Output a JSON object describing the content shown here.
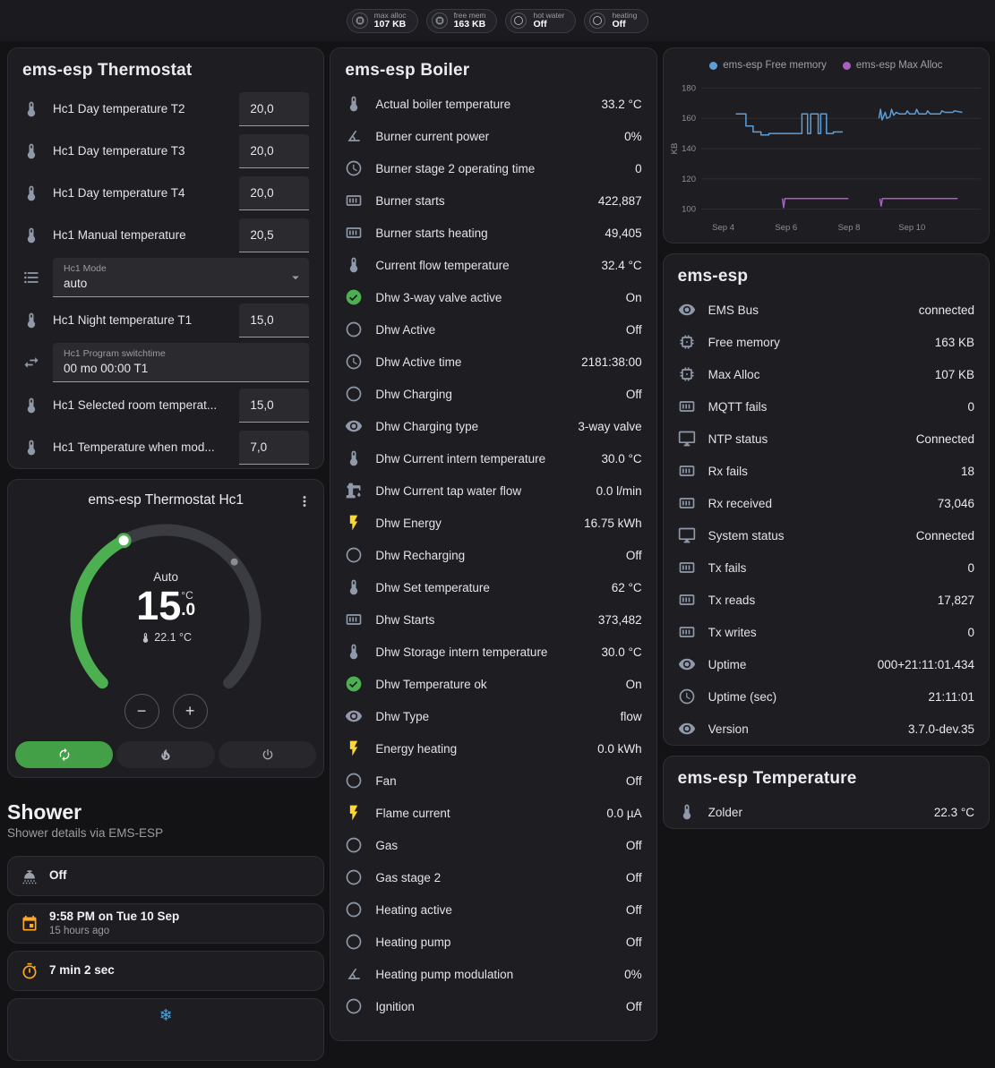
{
  "colors": {
    "green": "#4caf50",
    "amber": "#ffa726",
    "yellow": "#fdd835",
    "blue": "#4aa3df",
    "icon_default": "#8f99a9"
  },
  "topbar": {
    "chips": [
      {
        "icon": "memory",
        "label": "max alloc",
        "value": "107 KB"
      },
      {
        "icon": "memory",
        "label": "free mem",
        "value": "163 KB"
      },
      {
        "icon": "circle-outline",
        "label": "hot water",
        "value": "Off"
      },
      {
        "icon": "circle-outline",
        "label": "heating",
        "value": "Off"
      }
    ]
  },
  "thermostat_card": {
    "title": "ems-esp Thermostat",
    "rows": [
      {
        "icon": "thermometer",
        "label": "Hc1 Day temperature T2",
        "control": {
          "kind": "number",
          "value": "20,0"
        }
      },
      {
        "icon": "thermometer",
        "label": "Hc1 Day temperature T3",
        "control": {
          "kind": "number",
          "value": "20,0"
        }
      },
      {
        "icon": "thermometer",
        "label": "Hc1 Day temperature T4",
        "control": {
          "kind": "number",
          "value": "20,0"
        }
      },
      {
        "icon": "thermometer",
        "label": "Hc1 Manual temperature",
        "control": {
          "kind": "number",
          "value": "20,5"
        }
      },
      {
        "icon": "list",
        "label": "",
        "control": {
          "kind": "select",
          "label": "Hc1 Mode",
          "value": "auto"
        }
      },
      {
        "icon": "thermometer",
        "label": "Hc1 Night temperature T1",
        "control": {
          "kind": "number",
          "value": "15,0"
        }
      },
      {
        "icon": "swap",
        "label": "",
        "control": {
          "kind": "text",
          "label": "Hc1 Program switchtime",
          "value": "00 mo 00:00 T1"
        }
      },
      {
        "icon": "thermometer",
        "label": "Hc1 Selected room temperat...",
        "control": {
          "kind": "number",
          "value": "15,0"
        }
      },
      {
        "icon": "thermometer",
        "label": "Hc1 Temperature when mod...",
        "control": {
          "kind": "number",
          "value": "7,0"
        }
      }
    ]
  },
  "dial_card": {
    "title": "ems-esp Thermostat Hc1",
    "mode_label": "Auto",
    "target_int": "15",
    "target_dec": ".0",
    "unit": "°C",
    "current": "22.1 °C",
    "minus": "−",
    "plus": "+",
    "modes": [
      {
        "icon": "autorenew",
        "name": "auto",
        "active": true
      },
      {
        "icon": "fire",
        "name": "heat",
        "active": false
      },
      {
        "icon": "power",
        "name": "off",
        "active": false
      }
    ]
  },
  "shower": {
    "heading": "Shower",
    "subtitle": "Shower details via EMS-ESP",
    "tiles": [
      {
        "icon": "shower-head",
        "icon_color": "#9ba1ab",
        "title": "Off",
        "subtitle": ""
      },
      {
        "icon": "calendar",
        "icon_color": "#ffa726",
        "title": "9:58 PM on Tue 10 Sep",
        "subtitle": "15 hours ago"
      },
      {
        "icon": "timer",
        "icon_color": "#ffa726",
        "title": "7 min 2 sec",
        "subtitle": ""
      },
      {
        "icon": "snowflake",
        "glyph": "❄",
        "icon_color": "#4aa3df",
        "title": "",
        "subtitle": ""
      }
    ]
  },
  "boiler_card": {
    "title": "ems-esp Boiler",
    "rows": [
      {
        "icon": "thermometer",
        "label": "Actual boiler temperature",
        "value": "33.2 °C"
      },
      {
        "icon": "angle",
        "label": "Burner current power",
        "value": "0%"
      },
      {
        "icon": "clock",
        "label": "Burner stage 2 operating time",
        "value": "0"
      },
      {
        "icon": "counter",
        "label": "Burner starts",
        "value": "422,887"
      },
      {
        "icon": "counter",
        "label": "Burner starts heating",
        "value": "49,405"
      },
      {
        "icon": "thermometer",
        "label": "Current flow temperature",
        "value": "32.4 °C"
      },
      {
        "icon": "check-circle",
        "icon_color": "#4caf50",
        "label": "Dhw 3-way valve active",
        "value": "On"
      },
      {
        "icon": "circle-outline",
        "label": "Dhw Active",
        "value": "Off"
      },
      {
        "icon": "clock",
        "label": "Dhw Active time",
        "value": "2181:38:00"
      },
      {
        "icon": "circle-outline",
        "label": "Dhw Charging",
        "value": "Off"
      },
      {
        "icon": "eye",
        "label": "Dhw Charging type",
        "value": "3-way valve"
      },
      {
        "icon": "thermometer",
        "label": "Dhw Current intern temperature",
        "value": "30.0 °C"
      },
      {
        "icon": "water-pump",
        "label": "Dhw Current tap water flow",
        "value": "0.0 l/min"
      },
      {
        "icon": "flash",
        "icon_color": "#fdd835",
        "label": "Dhw Energy",
        "value": "16.75 kWh"
      },
      {
        "icon": "circle-outline",
        "label": "Dhw Recharging",
        "value": "Off"
      },
      {
        "icon": "thermometer",
        "label": "Dhw Set temperature",
        "value": "62 °C"
      },
      {
        "icon": "counter",
        "label": "Dhw Starts",
        "value": "373,482"
      },
      {
        "icon": "thermometer",
        "label": "Dhw Storage intern temperature",
        "value": "30.0 °C"
      },
      {
        "icon": "check-circle",
        "icon_color": "#4caf50",
        "label": "Dhw Temperature ok",
        "value": "On"
      },
      {
        "icon": "eye",
        "label": "Dhw Type",
        "value": "flow"
      },
      {
        "icon": "flash",
        "icon_color": "#fdd835",
        "label": "Energy heating",
        "value": "0.0 kWh"
      },
      {
        "icon": "circle-outline",
        "label": "Fan",
        "value": "Off"
      },
      {
        "icon": "flash",
        "icon_color": "#fdd835",
        "label": "Flame current",
        "value": "0.0 µA"
      },
      {
        "icon": "circle-outline",
        "label": "Gas",
        "value": "Off"
      },
      {
        "icon": "circle-outline",
        "label": "Gas stage 2",
        "value": "Off"
      },
      {
        "icon": "circle-outline",
        "label": "Heating active",
        "value": "Off"
      },
      {
        "icon": "circle-outline",
        "label": "Heating pump",
        "value": "Off"
      },
      {
        "icon": "angle",
        "label": "Heating pump modulation",
        "value": "0%"
      },
      {
        "icon": "circle-outline",
        "label": "Ignition",
        "value": "Off"
      }
    ]
  },
  "esp_card": {
    "title": "ems-esp",
    "rows": [
      {
        "icon": "eye",
        "label": "EMS Bus",
        "value": "connected"
      },
      {
        "icon": "memory",
        "label": "Free memory",
        "value": "163 KB"
      },
      {
        "icon": "memory",
        "label": "Max Alloc",
        "value": "107 KB"
      },
      {
        "icon": "counter",
        "label": "MQTT fails",
        "value": "0"
      },
      {
        "icon": "monitor",
        "label": "NTP status",
        "value": "Connected"
      },
      {
        "icon": "counter",
        "label": "Rx fails",
        "value": "18"
      },
      {
        "icon": "counter",
        "label": "Rx received",
        "value": "73,046"
      },
      {
        "icon": "monitor",
        "label": "System status",
        "value": "Connected"
      },
      {
        "icon": "counter",
        "label": "Tx fails",
        "value": "0"
      },
      {
        "icon": "counter",
        "label": "Tx reads",
        "value": "17,827"
      },
      {
        "icon": "counter",
        "label": "Tx writes",
        "value": "0"
      },
      {
        "icon": "eye",
        "label": "Uptime",
        "value": "000+21:11:01.434"
      },
      {
        "icon": "clock",
        "label": "Uptime (sec)",
        "value": "21:11:01"
      },
      {
        "icon": "eye",
        "label": "Version",
        "value": "3.7.0-dev.35"
      }
    ]
  },
  "temperature_card": {
    "title": "ems-esp Temperature",
    "rows": [
      {
        "icon": "thermometer",
        "label": "Zolder",
        "value": "22.3 °C"
      }
    ]
  },
  "chart_data": {
    "type": "line",
    "title": "",
    "ylabel": "KB",
    "ylim": [
      95,
      185
    ],
    "yticks": [
      100,
      120,
      140,
      160,
      180
    ],
    "xlim": [
      3.3,
      11.9
    ],
    "xticks": [
      {
        "v": 4,
        "label": "Sep 4"
      },
      {
        "v": 6,
        "label": "Sep 6"
      },
      {
        "v": 8,
        "label": "Sep 8"
      },
      {
        "v": 10,
        "label": "Sep 10"
      }
    ],
    "legend_position": "top",
    "grid": true,
    "series": [
      {
        "name": "ems-esp Free memory",
        "color": "#5e9ed6",
        "segments": [
          [
            [
              4.4,
              163
            ],
            [
              4.72,
              163
            ],
            [
              4.72,
              155
            ],
            [
              4.95,
              155
            ],
            [
              4.95,
              151
            ],
            [
              5.2,
              151
            ],
            [
              5.2,
              149
            ],
            [
              5.45,
              149
            ],
            [
              5.45,
              150
            ],
            [
              6.5,
              150
            ],
            [
              6.5,
              163
            ],
            [
              6.68,
              163
            ],
            [
              6.68,
              150
            ],
            [
              6.78,
              150
            ],
            [
              6.78,
              163
            ],
            [
              7.02,
              163
            ],
            [
              7.02,
              150
            ],
            [
              7.1,
              150
            ],
            [
              7.1,
              163
            ],
            [
              7.28,
              163
            ],
            [
              7.28,
              150
            ],
            [
              7.5,
              150
            ],
            [
              7.5,
              151
            ],
            [
              7.8,
              151
            ]
          ],
          [
            [
              8.95,
              160
            ],
            [
              9.0,
              166
            ],
            [
              9.05,
              159
            ],
            [
              9.15,
              164
            ],
            [
              9.2,
              160
            ],
            [
              9.3,
              161
            ],
            [
              9.35,
              166
            ],
            [
              9.42,
              162
            ],
            [
              9.5,
              164
            ],
            [
              9.6,
              163
            ],
            [
              9.8,
              163
            ],
            [
              9.85,
              165
            ],
            [
              9.92,
              163
            ],
            [
              10.1,
              163
            ],
            [
              10.15,
              166
            ],
            [
              10.22,
              163
            ],
            [
              10.45,
              163
            ],
            [
              10.5,
              165
            ],
            [
              10.58,
              163
            ],
            [
              10.9,
              163
            ],
            [
              10.95,
              165
            ],
            [
              11.05,
              164
            ],
            [
              11.3,
              164
            ],
            [
              11.35,
              165
            ],
            [
              11.6,
              164
            ]
          ]
        ]
      },
      {
        "name": "ems-esp Max Alloc",
        "color": "#a95fc2",
        "segments": [
          [
            [
              5.88,
              107
            ],
            [
              5.92,
              101
            ],
            [
              5.96,
              107
            ],
            [
              7.98,
              107
            ]
          ],
          [
            [
              8.98,
              107
            ],
            [
              9.02,
              102
            ],
            [
              9.06,
              107
            ],
            [
              11.45,
              107
            ]
          ]
        ]
      }
    ]
  }
}
